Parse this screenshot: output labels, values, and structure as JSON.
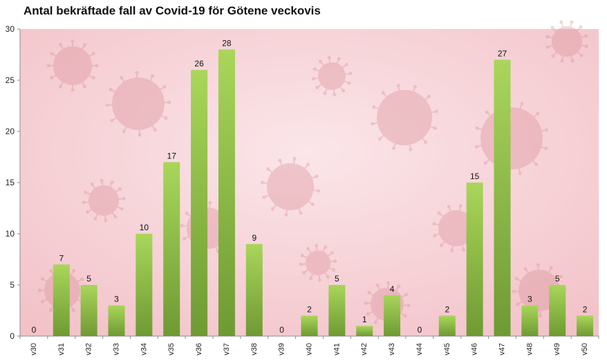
{
  "chart_data": {
    "type": "bar",
    "title": "Antal bekräftade fall av Covid-19 för Götene veckovis",
    "xlabel": "",
    "ylabel": "",
    "categories": [
      "v30",
      "v31",
      "v32",
      "v33",
      "v34",
      "v35",
      "v36",
      "v37",
      "v38",
      "v39",
      "v40",
      "v41",
      "v42",
      "v43",
      "v44",
      "v45",
      "v46",
      "v47",
      "v48",
      "v49",
      "v50"
    ],
    "values": [
      0,
      7,
      5,
      3,
      10,
      17,
      26,
      28,
      9,
      0,
      2,
      5,
      1,
      4,
      0,
      2,
      15,
      27,
      3,
      5,
      2
    ],
    "ylim": [
      0,
      30
    ],
    "yticks": [
      0,
      5,
      10,
      15,
      20,
      25,
      30
    ],
    "grid": false,
    "legend": "none",
    "data_labels": true,
    "colors": {
      "bar_top": "#a9d65a",
      "bar_bottom": "#6e9a33",
      "plot_bg_a": "#fbe6e9",
      "plot_bg_b": "#f2c2c8",
      "virus": "#d98b95"
    }
  }
}
